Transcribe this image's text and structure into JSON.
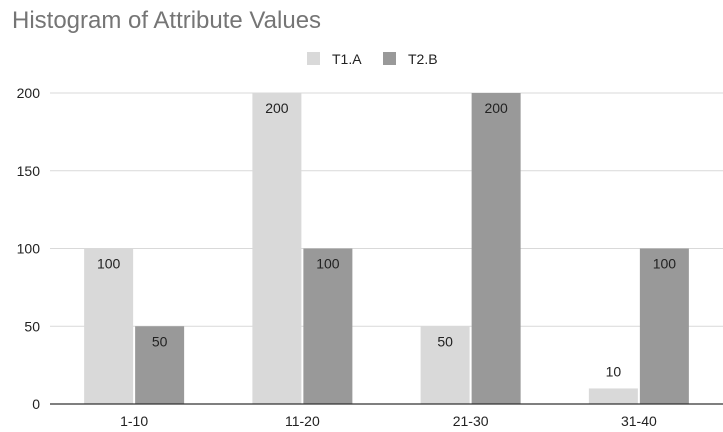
{
  "chart_data": {
    "type": "bar",
    "title": "Histogram of Attribute Values",
    "categories": [
      "1-10",
      "11-20",
      "21-30",
      "31-40"
    ],
    "series": [
      {
        "name": "T1.A",
        "values": [
          100,
          200,
          50,
          10
        ],
        "color": "#d9d9d9"
      },
      {
        "name": "T2.B",
        "values": [
          50,
          100,
          200,
          100
        ],
        "color": "#999999"
      }
    ],
    "ylim": [
      0,
      200
    ],
    "yticks": [
      0,
      50,
      100,
      150,
      200
    ],
    "grid": true,
    "legend_position": "top-center",
    "data_labels": true
  }
}
